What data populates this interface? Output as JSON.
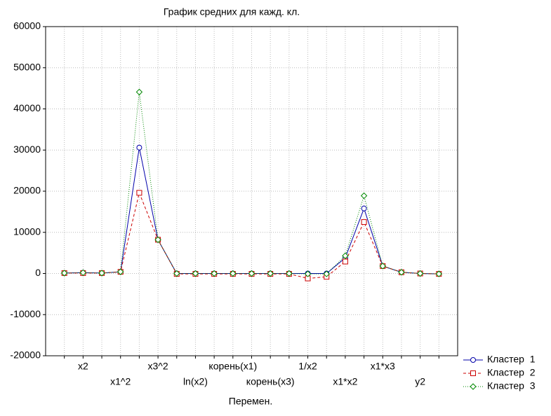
{
  "chart_data": {
    "type": "line",
    "title": "График средних для кажд. кл.",
    "x_label": "Перемен.",
    "categories": [
      null,
      "x2",
      null,
      "x1^2",
      null,
      "x3^2",
      null,
      "ln(x2)",
      null,
      "корень(x1)",
      null,
      "корень(x3)",
      null,
      "1/x2",
      null,
      "x1*x2",
      null,
      "x1*x3",
      null,
      "y2",
      null
    ],
    "series": [
      {
        "name": "Кластер  1",
        "color": "#0000aa",
        "marker": "circle",
        "dash": "solid",
        "values": [
          100,
          200,
          100,
          400,
          30600,
          8200,
          0,
          0,
          0,
          0,
          0,
          0,
          0,
          0,
          0,
          3800,
          15800,
          1800,
          300,
          0,
          -100
        ]
      },
      {
        "name": "Кластер  2",
        "color": "#cc0000",
        "marker": "square",
        "dash": "dashed",
        "values": [
          100,
          100,
          100,
          400,
          19600,
          8200,
          -100,
          -100,
          -100,
          -100,
          -100,
          -100,
          -100,
          -1200,
          -800,
          2900,
          12500,
          1800,
          300,
          0,
          -100
        ]
      },
      {
        "name": "Кластер  3",
        "color": "#008800",
        "marker": "diamond",
        "dash": "dotted",
        "values": [
          100,
          200,
          100,
          400,
          44100,
          8200,
          0,
          0,
          0,
          0,
          0,
          0,
          0,
          -100,
          -100,
          4300,
          18900,
          1800,
          300,
          0,
          -100
        ]
      }
    ],
    "ylim": [
      -20000,
      60000
    ],
    "yticks": [
      -20000,
      -10000,
      0,
      10000,
      20000,
      30000,
      40000,
      50000,
      60000
    ],
    "grid": true,
    "legend": "bottom-right"
  }
}
